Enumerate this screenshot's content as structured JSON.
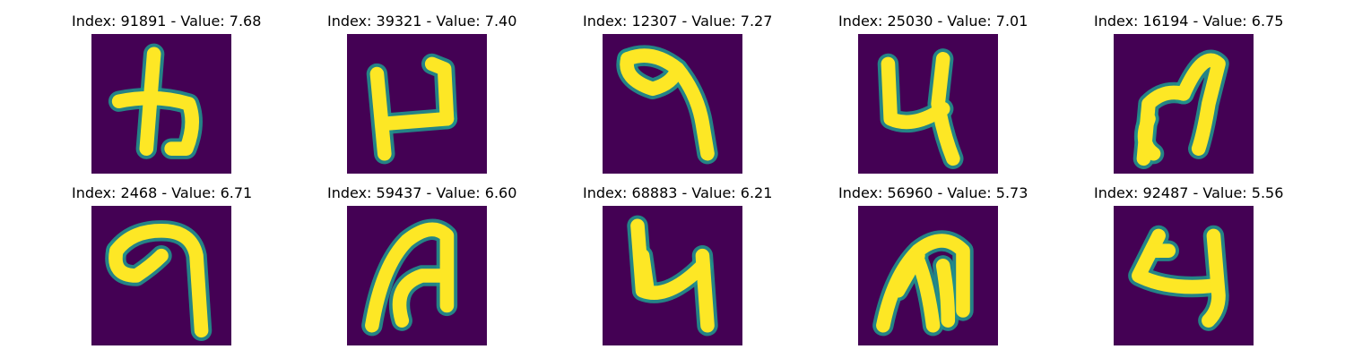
{
  "colors": {
    "background": "#440154",
    "stroke_edge": "#21918c",
    "stroke_core": "#fde725"
  },
  "panels": [
    {
      "title": "Index: 91891 - Value: 7.68",
      "glyph": "h-like"
    },
    {
      "title": "Index: 39321 - Value: 7.40",
      "glyph": "z-like"
    },
    {
      "title": "Index: 12307 - Value: 7.27",
      "glyph": "seven-curl"
    },
    {
      "title": "Index: 25030 - Value: 7.01",
      "glyph": "four-like"
    },
    {
      "title": "Index: 16194 - Value: 6.75",
      "glyph": "m-like"
    },
    {
      "title": "Index: 2468 - Value: 6.71",
      "glyph": "nine-like"
    },
    {
      "title": "Index: 59437 - Value: 6.60",
      "glyph": "arch-like"
    },
    {
      "title": "Index: 68883 - Value: 6.21",
      "glyph": "four-like-b"
    },
    {
      "title": "Index: 56960 - Value: 5.73",
      "glyph": "m-like-b"
    },
    {
      "title": "Index: 92487 - Value: 5.56",
      "glyph": "four-like-c"
    }
  ]
}
